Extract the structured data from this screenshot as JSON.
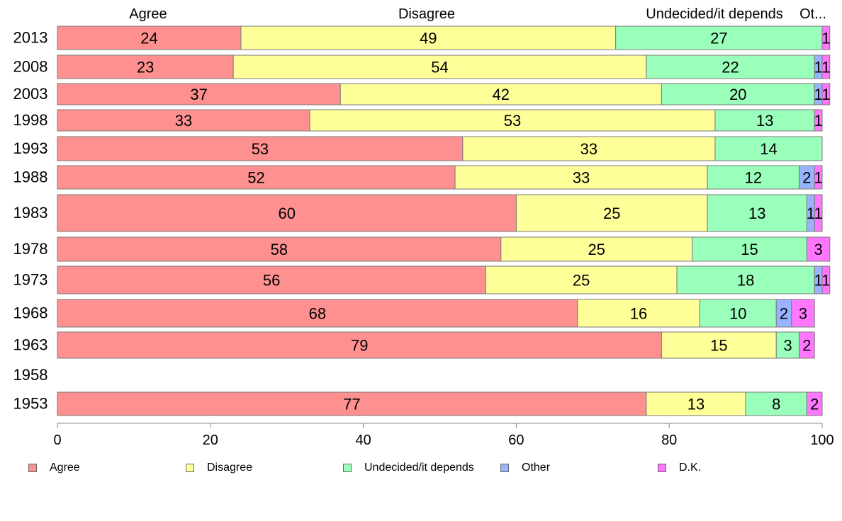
{
  "chart_data": {
    "type": "bar",
    "orientation": "horizontal",
    "stacked": true,
    "categories": [
      "2013",
      "2008",
      "2003",
      "1998",
      "1993",
      "1988",
      "1983",
      "1978",
      "1973",
      "1968",
      "1963",
      "1958",
      "1953"
    ],
    "series": [
      {
        "name": "Agree",
        "color": "#ff9090",
        "values": [
          24,
          23,
          37,
          33,
          53,
          52,
          60,
          58,
          56,
          68,
          79,
          null,
          77
        ]
      },
      {
        "name": "Disagree",
        "color": "#ffff99",
        "values": [
          49,
          54,
          42,
          53,
          33,
          33,
          25,
          25,
          25,
          16,
          15,
          null,
          13
        ]
      },
      {
        "name": "Undecided/it depends",
        "color": "#99ffbb",
        "values": [
          27,
          22,
          20,
          13,
          14,
          12,
          13,
          15,
          18,
          10,
          3,
          null,
          8
        ]
      },
      {
        "name": "Other",
        "color": "#99b3ff",
        "values": [
          0,
          1,
          1,
          0,
          0,
          2,
          1,
          0,
          1,
          2,
          0,
          null,
          0
        ]
      },
      {
        "name": "D.K.",
        "color": "#ff77ff",
        "values": [
          1,
          1,
          1,
          1,
          0,
          1,
          1,
          3,
          1,
          3,
          2,
          null,
          2
        ]
      }
    ],
    "column_headers": [
      "Agree",
      "Disagree",
      "Undecided/it depends",
      "Ot..."
    ],
    "xlim": [
      0,
      100
    ],
    "xticks": [
      0,
      20,
      40,
      60,
      80,
      100
    ],
    "legend_position": "bottom",
    "grid": false
  }
}
